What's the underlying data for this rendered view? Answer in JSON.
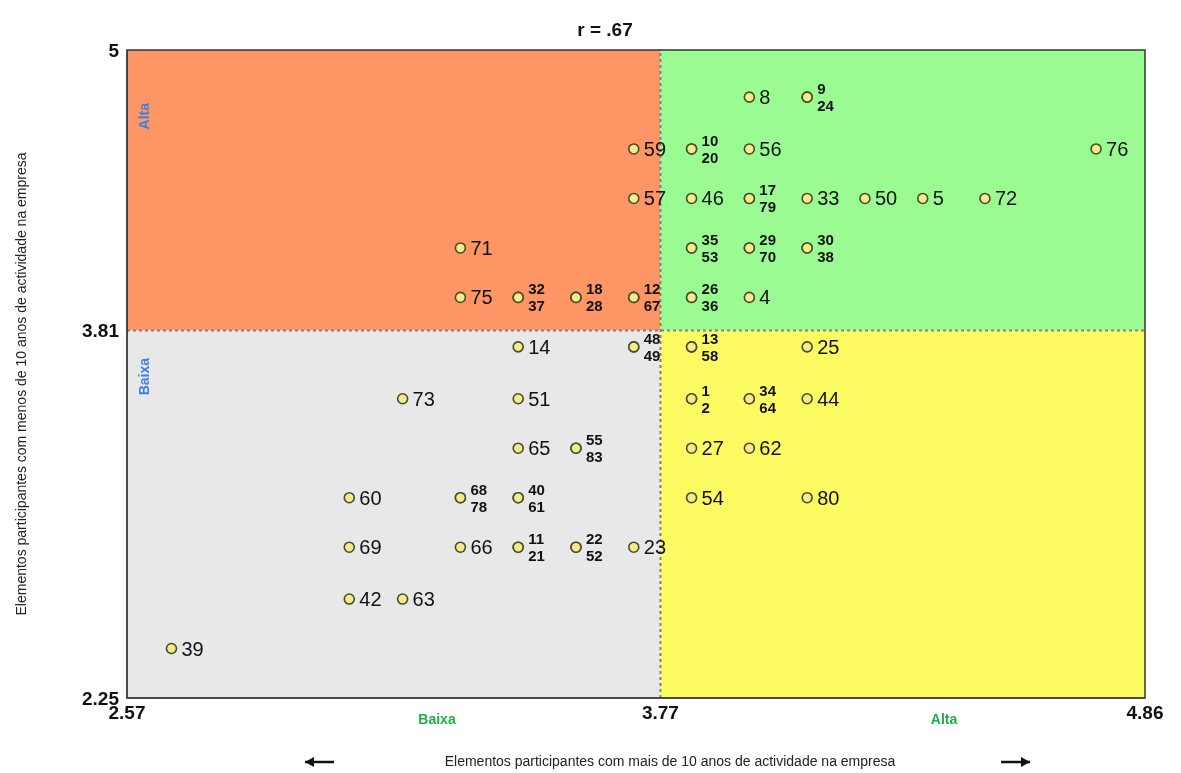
{
  "chart_data": {
    "type": "scatter",
    "title": "r = .67",
    "xlabel": "Elementos participantes com mais de 10 anos de actividade na empresa",
    "ylabel": "Elementos participantes com menos de 10 anos de actividade na empresa",
    "xlim": [
      2.57,
      4.86
    ],
    "xticks": [
      2.57,
      3.77,
      4.86
    ],
    "ylim": [
      2.25,
      5
    ],
    "yticks": [
      2.25,
      3.81,
      5
    ],
    "grid": false,
    "legend": false,
    "marker": "circle",
    "ref_lines": [
      {
        "axis": "x",
        "value": 3.77,
        "color": "#808080",
        "line_style": "dotted"
      },
      {
        "axis": "y",
        "value": 3.81,
        "color": "#808080",
        "line_style": "dotted"
      }
    ],
    "series": [
      {
        "color": "#f2ec8a",
        "x": [
          3.97,
          4.1,
          4.1,
          3.71,
          3.84,
          3.84,
          3.97,
          4.75,
          3.71,
          3.84,
          3.97,
          3.97,
          4.1,
          4.23,
          4.36,
          4.5,
          3.32,
          3.84,
          3.84,
          3.97,
          3.97,
          4.1,
          4.1,
          3.32,
          3.45,
          3.45,
          3.58,
          3.58,
          3.71,
          3.71,
          3.84,
          3.84,
          3.97,
          3.45,
          3.71,
          3.71,
          3.84,
          3.84,
          4.1,
          3.19,
          3.45,
          3.84,
          3.84,
          3.97,
          3.97,
          4.1,
          3.45,
          3.58,
          3.58,
          3.84,
          3.97,
          3.07,
          3.32,
          3.32,
          3.45,
          3.45,
          3.84,
          4.1,
          3.07,
          3.32,
          3.45,
          3.45,
          3.58,
          3.58,
          3.71,
          3.07,
          3.19,
          2.67
        ],
        "values": [
          4.8,
          4.8,
          4.8,
          4.58,
          4.58,
          4.58,
          4.58,
          4.58,
          4.37,
          4.37,
          4.37,
          4.37,
          4.37,
          4.37,
          4.37,
          4.37,
          4.16,
          4.16,
          4.16,
          4.16,
          4.16,
          4.16,
          4.16,
          3.95,
          3.95,
          3.95,
          3.95,
          3.95,
          3.95,
          3.95,
          3.95,
          3.95,
          3.95,
          3.74,
          3.74,
          3.74,
          3.74,
          3.74,
          3.74,
          3.52,
          3.52,
          3.52,
          3.52,
          3.52,
          3.52,
          3.52,
          3.31,
          3.31,
          3.31,
          3.31,
          3.31,
          3.1,
          3.1,
          3.1,
          3.1,
          3.1,
          3.1,
          3.1,
          2.89,
          2.89,
          2.89,
          2.89,
          2.89,
          2.89,
          2.89,
          2.67,
          2.67,
          2.46
        ]
      }
    ],
    "annotations": [
      "Alta",
      "Baixa",
      "Baixa",
      "Alta",
      {
        "text": "8",
        "x": 3.97,
        "y": 4.8
      },
      {
        "text": "9",
        "x": 4.1,
        "y": 4.8
      },
      {
        "text": "24",
        "x": 4.1,
        "y": 4.8
      },
      {
        "text": "59",
        "x": 3.71,
        "y": 4.58
      },
      {
        "text": "10",
        "x": 3.84,
        "y": 4.58
      },
      {
        "text": "20",
        "x": 3.84,
        "y": 4.58
      },
      {
        "text": "56",
        "x": 3.97,
        "y": 4.58
      },
      {
        "text": "76",
        "x": 4.75,
        "y": 4.58
      },
      {
        "text": "57",
        "x": 3.71,
        "y": 4.37
      },
      {
        "text": "46",
        "x": 3.84,
        "y": 4.37
      },
      {
        "text": "17",
        "x": 3.97,
        "y": 4.37
      },
      {
        "text": "79",
        "x": 3.97,
        "y": 4.37
      },
      {
        "text": "33",
        "x": 4.1,
        "y": 4.37
      },
      {
        "text": "50",
        "x": 4.23,
        "y": 4.37
      },
      {
        "text": "5",
        "x": 4.36,
        "y": 4.37
      },
      {
        "text": "72",
        "x": 4.5,
        "y": 4.37
      },
      {
        "text": "71",
        "x": 3.32,
        "y": 4.16
      },
      {
        "text": "35",
        "x": 3.84,
        "y": 4.16
      },
      {
        "text": "53",
        "x": 3.84,
        "y": 4.16
      },
      {
        "text": "29",
        "x": 3.97,
        "y": 4.16
      },
      {
        "text": "70",
        "x": 3.97,
        "y": 4.16
      },
      {
        "text": "30",
        "x": 4.1,
        "y": 4.16
      },
      {
        "text": "38",
        "x": 4.1,
        "y": 4.16
      },
      {
        "text": "75",
        "x": 3.32,
        "y": 3.95
      },
      {
        "text": "32",
        "x": 3.45,
        "y": 3.95
      },
      {
        "text": "37",
        "x": 3.45,
        "y": 3.95
      },
      {
        "text": "18",
        "x": 3.58,
        "y": 3.95
      },
      {
        "text": "28",
        "x": 3.58,
        "y": 3.95
      },
      {
        "text": "12",
        "x": 3.71,
        "y": 3.95
      },
      {
        "text": "67",
        "x": 3.71,
        "y": 3.95
      },
      {
        "text": "26",
        "x": 3.84,
        "y": 3.95
      },
      {
        "text": "36",
        "x": 3.84,
        "y": 3.95
      },
      {
        "text": "4",
        "x": 3.97,
        "y": 3.95
      },
      {
        "text": "14",
        "x": 3.45,
        "y": 3.74
      },
      {
        "text": "48",
        "x": 3.71,
        "y": 3.74
      },
      {
        "text": "49",
        "x": 3.71,
        "y": 3.74
      },
      {
        "text": "13",
        "x": 3.84,
        "y": 3.74
      },
      {
        "text": "58",
        "x": 3.84,
        "y": 3.74
      },
      {
        "text": "25",
        "x": 4.1,
        "y": 3.74
      },
      {
        "text": "73",
        "x": 3.19,
        "y": 3.52
      },
      {
        "text": "51",
        "x": 3.45,
        "y": 3.52
      },
      {
        "text": "1",
        "x": 3.84,
        "y": 3.52
      },
      {
        "text": "2",
        "x": 3.84,
        "y": 3.52
      },
      {
        "text": "34",
        "x": 3.97,
        "y": 3.52
      },
      {
        "text": "64",
        "x": 3.97,
        "y": 3.52
      },
      {
        "text": "44",
        "x": 4.1,
        "y": 3.52
      },
      {
        "text": "65",
        "x": 3.45,
        "y": 3.31
      },
      {
        "text": "55",
        "x": 3.58,
        "y": 3.31
      },
      {
        "text": "83",
        "x": 3.58,
        "y": 3.31
      },
      {
        "text": "27",
        "x": 3.84,
        "y": 3.31
      },
      {
        "text": "62",
        "x": 3.97,
        "y": 3.31
      },
      {
        "text": "60",
        "x": 3.07,
        "y": 3.1
      },
      {
        "text": "68",
        "x": 3.32,
        "y": 3.1
      },
      {
        "text": "78",
        "x": 3.32,
        "y": 3.1
      },
      {
        "text": "40",
        "x": 3.45,
        "y": 3.1
      },
      {
        "text": "61",
        "x": 3.45,
        "y": 3.1
      },
      {
        "text": "54",
        "x": 3.84,
        "y": 3.1
      },
      {
        "text": "80",
        "x": 4.1,
        "y": 3.1
      },
      {
        "text": "69",
        "x": 3.07,
        "y": 2.89
      },
      {
        "text": "66",
        "x": 3.32,
        "y": 2.89
      },
      {
        "text": "11",
        "x": 3.45,
        "y": 2.89
      },
      {
        "text": "21",
        "x": 3.45,
        "y": 2.89
      },
      {
        "text": "22",
        "x": 3.58,
        "y": 2.89
      },
      {
        "text": "52",
        "x": 3.58,
        "y": 2.89
      },
      {
        "text": "23",
        "x": 3.71,
        "y": 2.89
      },
      {
        "text": "42",
        "x": 3.07,
        "y": 2.67
      },
      {
        "text": "63",
        "x": 3.19,
        "y": 2.67
      },
      {
        "text": "39",
        "x": 2.67,
        "y": 2.46
      }
    ]
  }
}
